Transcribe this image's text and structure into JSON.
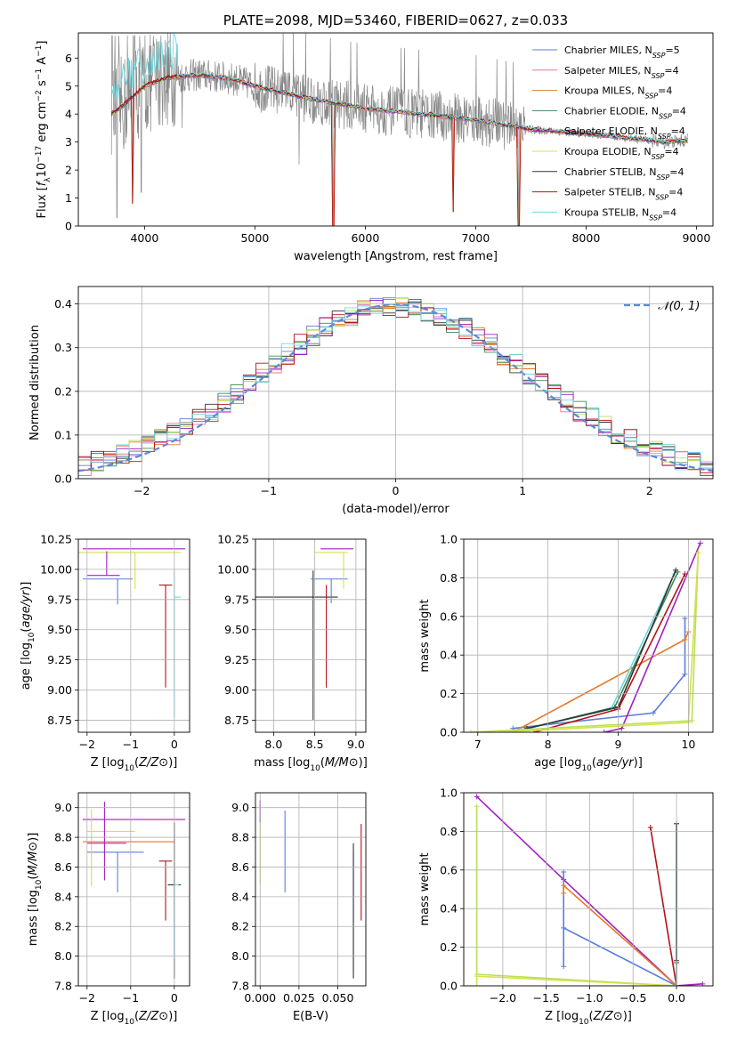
{
  "colors": {
    "Chabrier MILES": "#5b7fd8",
    "Salpeter MILES": "#e173a8",
    "Kroupa MILES": "#c9862a",
    "Chabrier ELODIE": "#3f8a57",
    "Salpeter ELODIE": "#a020c0",
    "Kroupa ELODIE": "#d8e04a",
    "Chabrier STELIB": "#333333",
    "Salpeter STELIB": "#b3121a",
    "Kroupa STELIB": "#6fd8e0",
    "orange": "#e6782a",
    "lime": "#b8e05a",
    "spectrum": "#888888",
    "gauss": "#5b8ad8"
  },
  "chart_data": [
    {
      "id": "spectrum",
      "type": "line",
      "title": "PLATE=2098, MJD=53460, FIBERID=0627, z=0.033",
      "xlabel": "wavelength [Angstrom, rest frame]",
      "ylabel": "Flux [f_λ10^-17 erg cm^-2 s^-1 A^-1]",
      "xlim": [
        3400,
        9150
      ],
      "ylim": [
        0,
        6.9
      ],
      "xticks": [
        "4000",
        "5000",
        "6000",
        "7000",
        "8000",
        "9000"
      ],
      "yticks": [
        "0",
        "1",
        "2",
        "3",
        "4",
        "5",
        "6"
      ],
      "legend": [
        "Chabrier MILES, N_SSP=5",
        "Salpeter MILES, N_SSP=4",
        "Kroupa MILES, N_SSP=4",
        "Chabrier ELODIE, N_SSP=4",
        "Salpeter ELODIE, N_SSP=4",
        "Kroupa ELODIE, N_SSP=4",
        "Chabrier STELIB, N_SSP=4",
        "Salpeter STELIB, N_SSP=4",
        "Kroupa STELIB, N_SSP=4"
      ],
      "legend_names": [
        "Chabrier MILES",
        "Salpeter MILES",
        "Kroupa MILES",
        "Chabrier ELODIE",
        "Salpeter ELODIE",
        "Kroupa ELODIE",
        "Chabrier STELIB",
        "Salpeter STELIB",
        "Kroupa STELIB"
      ],
      "legend_placement": "upper-right",
      "continuum": [
        [
          3700,
          4.0
        ],
        [
          3800,
          4.3
        ],
        [
          4000,
          5.0
        ],
        [
          4200,
          5.3
        ],
        [
          4500,
          5.4
        ],
        [
          4800,
          5.25
        ],
        [
          5000,
          5.0
        ],
        [
          5500,
          4.55
        ],
        [
          6000,
          4.2
        ],
        [
          6500,
          4.0
        ],
        [
          7000,
          3.8
        ],
        [
          7500,
          3.45
        ],
        [
          8000,
          3.3
        ],
        [
          8500,
          3.1
        ],
        [
          8700,
          3.0
        ],
        [
          8900,
          3.05
        ]
      ],
      "spikes_down": [
        [
          3750,
          0.3
        ],
        [
          3890,
          0.8
        ],
        [
          3970,
          1.2
        ],
        [
          4340,
          3.5
        ],
        [
          5400,
          2.2
        ],
        [
          5710,
          0.0
        ],
        [
          6800,
          0.5
        ],
        [
          7390,
          0.0
        ]
      ]
    },
    {
      "id": "residuals",
      "type": "histogram",
      "xlabel": "(data-model)/error",
      "ylabel": "Normed distribution",
      "xlim": [
        -2.5,
        2.5
      ],
      "ylim": [
        0,
        0.44
      ],
      "xticks": [
        "−2",
        "−1",
        "0",
        "1",
        "2"
      ],
      "yticks": [
        "0.0",
        "0.1",
        "0.2",
        "0.3",
        "0.4"
      ],
      "legend": [
        "𝒩(0, 1)"
      ],
      "bin_width": 0.1,
      "bin_start": -2.5,
      "grid": true
    },
    {
      "id": "age_vs_Z",
      "type": "errorbar",
      "xlabel": "Z [log10(Z/Z⊙)]",
      "ylabel": "age  [log10(age/yr)]",
      "xlim": [
        -2.2,
        0.35
      ],
      "ylim": [
        8.65,
        10.25
      ],
      "xticks": [
        "−2",
        "−1",
        "0"
      ],
      "yticks": [
        "8.75",
        "9.00",
        "9.25",
        "9.50",
        "9.75",
        "10.00",
        "10.25"
      ],
      "points": [
        {
          "model": "Chabrier MILES",
          "x": -1.3,
          "xerr": [
            0.8,
            0.35
          ],
          "y": 9.92,
          "yerr": [
            0.21,
            0.0
          ]
        },
        {
          "model": "Salpeter ELODIE",
          "x": -0.8,
          "xerr": [
            1.3,
            1.05
          ],
          "y": 10.17,
          "yerr": [
            0.0,
            0.0
          ]
        },
        {
          "model": "Kroupa ELODIE",
          "x": -0.9,
          "xerr": [
            1.3,
            1.05
          ],
          "y": 10.14,
          "yerr": [
            0.3,
            0.0
          ]
        },
        {
          "model": "Salpeter STELIB",
          "x": -0.2,
          "xerr": [
            0.15,
            0.15
          ],
          "y": 9.87,
          "yerr": [
            0.85,
            0.0
          ]
        },
        {
          "model": "Kroupa STELIB",
          "x": 0.0,
          "xerr": [
            0.0,
            0.15
          ],
          "y": 9.77,
          "yerr": [
            1.0,
            0.22
          ]
        },
        {
          "model": "Salpeter ELODIE",
          "x": -1.55,
          "xerr": [
            0.45,
            0.3
          ],
          "y": 9.95,
          "yerr": [
            0.0,
            0.2
          ]
        }
      ]
    },
    {
      "id": "age_vs_mass",
      "type": "errorbar",
      "xlabel": "mass [log10(M/M⊙)]",
      "ylabel": "",
      "xlim": [
        7.78,
        9.12
      ],
      "ylim": [
        8.65,
        10.25
      ],
      "xticks": [
        "8.0",
        "8.5",
        "9.0"
      ],
      "yticks": [
        "8.75",
        "9.00",
        "9.25",
        "9.50",
        "9.75",
        "10.00",
        "10.25"
      ],
      "points": [
        {
          "model": "Chabrier STELIB",
          "x": 8.48,
          "xerr": [
            0.7,
            0.3
          ],
          "y": 9.77,
          "yerr": [
            1.02,
            0.22
          ]
        },
        {
          "model": "Chabrier MILES",
          "x": 8.7,
          "xerr": [
            0.25,
            0.2
          ],
          "y": 9.92,
          "yerr": [
            0.2,
            0.0
          ]
        },
        {
          "model": "Salpeter STELIB",
          "x": 8.64,
          "xerr": [
            0.0,
            0.0
          ],
          "y": 9.87,
          "yerr": [
            0.85,
            0.0
          ]
        },
        {
          "model": "Kroupa ELODIE",
          "x": 8.85,
          "xerr": [
            0.35,
            0.05
          ],
          "y": 10.14,
          "yerr": [
            0.3,
            0.0
          ]
        },
        {
          "model": "Salpeter ELODIE",
          "x": 8.92,
          "xerr": [
            0.35,
            0.05
          ],
          "y": 10.17,
          "yerr": [
            0.0,
            0.0
          ]
        }
      ]
    },
    {
      "id": "mass_weight_vs_age",
      "type": "line",
      "xlabel": "age  [log10(age/yr)]",
      "ylabel": "mass weight",
      "xlim": [
        6.8,
        10.35
      ],
      "ylim": [
        0,
        1.0
      ],
      "xticks": [
        "7",
        "8",
        "9",
        "10"
      ],
      "yticks": [
        "0.0",
        "0.2",
        "0.4",
        "0.6",
        "0.8",
        "1.0"
      ],
      "series": [
        {
          "model": "Chabrier MILES",
          "x": [
            7.5,
            9.5,
            9.95,
            9.95
          ],
          "y": [
            0.02,
            0.1,
            0.3,
            0.59
          ]
        },
        {
          "model": "orange",
          "x": [
            7.5,
            9.95,
            10.0
          ],
          "y": [
            0.0,
            0.48,
            0.52
          ]
        },
        {
          "model": "Chabrier ELODIE",
          "x": [
            7.5,
            8.95,
            9.85
          ],
          "y": [
            0.0,
            0.13,
            0.83
          ]
        },
        {
          "model": "Kroupa STELIB",
          "x": [
            7.6,
            8.9,
            9.8
          ],
          "y": [
            0.01,
            0.12,
            0.82
          ]
        },
        {
          "model": "Chabrier STELIB",
          "x": [
            7.7,
            9.0,
            9.82
          ],
          "y": [
            0.02,
            0.13,
            0.84
          ]
        },
        {
          "model": "Salpeter STELIB",
          "x": [
            7.8,
            9.0,
            9.95
          ],
          "y": [
            0.0,
            0.12,
            0.82
          ]
        },
        {
          "model": "Salpeter ELODIE",
          "x": [
            8.8,
            9.05,
            10.17
          ],
          "y": [
            0.0,
            0.02,
            0.98
          ]
        },
        {
          "model": "lime",
          "x": [
            6.9,
            10.05,
            10.14
          ],
          "y": [
            0.0,
            0.06,
            0.93
          ]
        },
        {
          "model": "Kroupa ELODIE",
          "x": [
            7.3,
            10.0,
            10.14
          ],
          "y": [
            0.0,
            0.05,
            0.93
          ]
        }
      ]
    },
    {
      "id": "mass_vs_Z",
      "type": "errorbar",
      "xlabel": "Z [log10(Z/Z⊙)]",
      "ylabel": "mass [log10(M/M⊙)]",
      "xlim": [
        -2.2,
        0.35
      ],
      "ylim": [
        7.8,
        9.1
      ],
      "xticks": [
        "−2",
        "−1",
        "0"
      ],
      "yticks": [
        "7.8",
        "8.0",
        "8.2",
        "8.4",
        "8.6",
        "8.8",
        "9.0"
      ],
      "points": [
        {
          "model": "Chabrier MILES",
          "x": -1.3,
          "xerr": [
            0.7,
            0.6
          ],
          "y": 8.7,
          "yerr": [
            0.27,
            0.0
          ]
        },
        {
          "model": "Salpeter ELODIE",
          "x": -0.8,
          "xerr": [
            1.3,
            1.05
          ],
          "y": 8.92,
          "yerr": [
            0.0,
            0.0
          ]
        },
        {
          "model": "Kroupa ELODIE",
          "x": -1.9,
          "xerr": [
            0.1,
            1.0
          ],
          "y": 8.84,
          "yerr": [
            0.37,
            0.15
          ]
        },
        {
          "model": "orange",
          "x": -0.9,
          "xerr": [
            1.2,
            0.9
          ],
          "y": 8.77,
          "yerr": [
            0.0,
            0.0
          ]
        },
        {
          "model": "Salpeter ELODIE",
          "x": -1.6,
          "xerr": [
            0.4,
            0.5
          ],
          "y": 8.76,
          "yerr": [
            0.25,
            0.28
          ]
        },
        {
          "model": "Salpeter STELIB",
          "x": -0.2,
          "xerr": [
            0.15,
            0.15
          ],
          "y": 8.64,
          "yerr": [
            0.4,
            0.0
          ]
        },
        {
          "model": "Chabrier STELIB",
          "x": 0.0,
          "xerr": [
            0.15,
            0.15
          ],
          "y": 8.48,
          "yerr": [
            0.63,
            0.42
          ]
        },
        {
          "model": "Kroupa STELIB",
          "x": 0.0,
          "xerr": [
            0.0,
            0.1
          ],
          "y": 8.48,
          "yerr": [
            0.5,
            0.0
          ]
        }
      ]
    },
    {
      "id": "mass_vs_ebv",
      "type": "errorbar",
      "xlabel": "E(B-V)",
      "ylabel": "",
      "xlim": [
        -0.003,
        0.068
      ],
      "ylim": [
        7.8,
        9.1
      ],
      "xticks": [
        "0.000",
        "0.025",
        "0.050"
      ],
      "yticks": [
        "7.8",
        "8.0",
        "8.2",
        "8.4",
        "8.6",
        "8.8",
        "9.0"
      ],
      "points": [
        {
          "model": "Salpeter ELODIE",
          "x": 0.0,
          "xerr": [
            0,
            0
          ],
          "y": 8.95,
          "yerr": [
            0.05,
            0.1
          ]
        },
        {
          "model": "Kroupa ELODIE",
          "x": 0.0,
          "xerr": [
            0,
            0
          ],
          "y": 8.7,
          "yerr": [
            0.22,
            0.2
          ]
        },
        {
          "model": "Chabrier MILES",
          "x": 0.016,
          "xerr": [
            0,
            0
          ],
          "y": 8.7,
          "yerr": [
            0.27,
            0.28
          ]
        },
        {
          "model": "Kroupa STELIB",
          "x": 0.06,
          "xerr": [
            0,
            0
          ],
          "y": 8.3,
          "yerr": [
            0.4,
            0.4
          ]
        },
        {
          "model": "Chabrier STELIB",
          "x": 0.06,
          "xerr": [
            0,
            0
          ],
          "y": 8.3,
          "yerr": [
            0.45,
            0.46
          ]
        },
        {
          "model": "Salpeter STELIB",
          "x": 0.065,
          "xerr": [
            0,
            0
          ],
          "y": 8.56,
          "yerr": [
            0.32,
            0.33
          ]
        }
      ]
    },
    {
      "id": "mass_weight_vs_Z",
      "type": "line",
      "xlabel": "Z [log10(Z/Z⊙)]",
      "ylabel": "mass weight",
      "xlim": [
        -2.45,
        0.42
      ],
      "ylim": [
        0,
        1.0
      ],
      "xticks": [
        "−2.0",
        "−1.5",
        "−1.0",
        "−0.5",
        "0.0"
      ],
      "yticks": [
        "0.0",
        "0.2",
        "0.4",
        "0.6",
        "0.8",
        "1.0"
      ],
      "series": [
        {
          "model": "Salpeter ELODIE",
          "x": [
            -2.3,
            -1.3,
            0.0,
            0.3
          ],
          "y": [
            0.98,
            0.55,
            0.0,
            0.01
          ]
        },
        {
          "model": "Chabrier MILES",
          "x": [
            -1.3,
            -1.3,
            -1.3,
            0.0
          ],
          "y": [
            0.1,
            0.59,
            0.3,
            0.0
          ]
        },
        {
          "model": "orange",
          "x": [
            -1.3,
            -1.3,
            0.0
          ],
          "y": [
            0.48,
            0.52,
            0.0
          ]
        },
        {
          "model": "Salpeter STELIB",
          "x": [
            -0.3,
            0.0,
            0.0
          ],
          "y": [
            0.82,
            0.0,
            0.12
          ]
        },
        {
          "model": "Kroupa STELIB",
          "x": [
            0.0,
            0.0
          ],
          "y": [
            0.0,
            0.84
          ]
        },
        {
          "model": "Chabrier STELIB",
          "x": [
            0.0,
            0.0
          ],
          "y": [
            0.13,
            0.84
          ]
        },
        {
          "model": "lime",
          "x": [
            -2.3,
            -2.3,
            0.0
          ],
          "y": [
            0.93,
            0.06,
            0.0
          ]
        },
        {
          "model": "Kroupa ELODIE",
          "x": [
            -2.3,
            -2.3,
            0.0
          ],
          "y": [
            0.0,
            0.05,
            0.0
          ]
        }
      ]
    }
  ]
}
